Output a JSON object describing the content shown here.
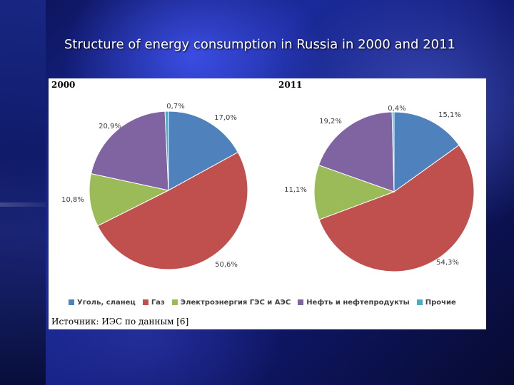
{
  "slide": {
    "title": "Structure of energy consumption in Russia in 2000 and 2011"
  },
  "chart_data": [
    {
      "type": "pie",
      "title": "2000",
      "categories": [
        "Уголь, сланец",
        "Газ",
        "Электроэнергия ГЭС и АЭС",
        "Нефть и нефтепродукты",
        "Прочие"
      ],
      "values": [
        17.0,
        50.6,
        10.8,
        20.9,
        0.7
      ],
      "labels": [
        "17,0%",
        "50,6%",
        "10,8%",
        "20,9%",
        "0,7%"
      ],
      "colors": [
        "#4f81bd",
        "#c0504d",
        "#9bbb59",
        "#8064a2",
        "#4bacc6"
      ]
    },
    {
      "type": "pie",
      "title": "2011",
      "categories": [
        "Уголь, сланец",
        "Газ",
        "Электроэнергия ГЭС и АЭС",
        "Нефть и нефтепродукты",
        "Прочие"
      ],
      "values": [
        15.1,
        54.3,
        11.1,
        19.2,
        0.4
      ],
      "labels": [
        "15,1%",
        "54,3%",
        "11,1%",
        "19,2%",
        "0,4%"
      ],
      "colors": [
        "#4f81bd",
        "#c0504d",
        "#9bbb59",
        "#8064a2",
        "#4bacc6"
      ]
    }
  ],
  "legend": {
    "items": [
      {
        "label": "Уголь, сланец",
        "color": "#4f81bd"
      },
      {
        "label": "Газ",
        "color": "#c0504d"
      },
      {
        "label": "Электроэнергия ГЭС и АЭС",
        "color": "#9bbb59"
      },
      {
        "label": "Нефть и нефтепродукты",
        "color": "#8064a2"
      },
      {
        "label": "Прочие",
        "color": "#4bacc6"
      }
    ]
  },
  "source": "Источник: ИЭС по данным [6]"
}
